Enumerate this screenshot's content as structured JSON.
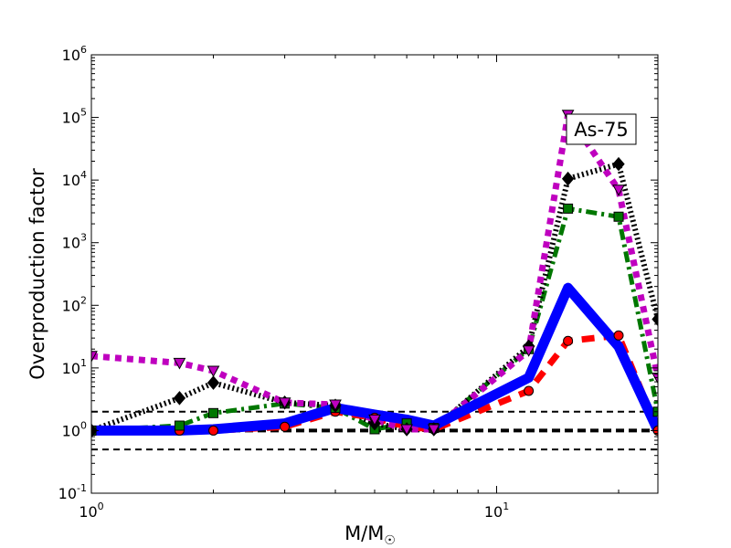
{
  "chart_data": {
    "type": "line",
    "annotation": "As-75",
    "xlabel_main": "M/M",
    "xlabel_sub": "☉",
    "ylabel": "Overproduction factor",
    "x_scale": "log",
    "y_scale": "log",
    "xlim": [
      1,
      25
    ],
    "ylim": [
      0.1,
      1000000
    ],
    "x_ticks": [
      {
        "value": 1,
        "base": "10",
        "exp": "0"
      },
      {
        "value": 10,
        "base": "10",
        "exp": "1"
      }
    ],
    "y_ticks": [
      {
        "value": 0.1,
        "base": "10",
        "exp": "-1"
      },
      {
        "value": 1,
        "base": "10",
        "exp": "0"
      },
      {
        "value": 10,
        "base": "10",
        "exp": "1"
      },
      {
        "value": 100,
        "base": "10",
        "exp": "2"
      },
      {
        "value": 1000,
        "base": "10",
        "exp": "3"
      },
      {
        "value": 10000,
        "base": "10",
        "exp": "4"
      },
      {
        "value": 100000,
        "base": "10",
        "exp": "5"
      },
      {
        "value": 1000000,
        "base": "10",
        "exp": "6"
      }
    ],
    "reference_lines": [
      {
        "y": 2,
        "style": "thin-dashed"
      },
      {
        "y": 1,
        "style": "thick-dashed"
      },
      {
        "y": 0.5,
        "style": "thin-dashed"
      }
    ],
    "grid": false,
    "series": [
      {
        "color": "#ff0000",
        "marker": "circle",
        "line": "dashed",
        "width": 7,
        "x": [
          1,
          1.65,
          2,
          3,
          4,
          5,
          6,
          7,
          12,
          15,
          20,
          25
        ],
        "y": [
          1,
          1,
          1,
          1.15,
          2.0,
          1.6,
          1.15,
          1.05,
          4.3,
          27,
          33,
          1
        ]
      },
      {
        "color": "#0000ff",
        "marker": "none",
        "line": "solid",
        "width": 11,
        "x": [
          1,
          1.65,
          2,
          3,
          4,
          5,
          6,
          7,
          12,
          15,
          20,
          25
        ],
        "y": [
          1,
          1,
          1.05,
          1.3,
          2.3,
          1.8,
          1.5,
          1.2,
          7,
          190,
          22,
          1
        ]
      },
      {
        "color": "#007700",
        "marker": "square",
        "line": "dashdot",
        "width": 5,
        "x": [
          1,
          1.65,
          2,
          3,
          4,
          5,
          6,
          7,
          12,
          15,
          20,
          25
        ],
        "y": [
          1,
          1.2,
          1.9,
          2.7,
          2.3,
          1.05,
          1.3,
          1.1,
          20,
          3500,
          2600,
          2
        ]
      },
      {
        "color": "#000000",
        "marker": "diamond",
        "line": "dotted",
        "width": 6,
        "x": [
          1,
          1.65,
          2,
          3,
          4,
          5,
          6,
          7,
          12,
          15,
          20,
          25
        ],
        "y": [
          1,
          3.3,
          5.8,
          2.8,
          2.5,
          1.3,
          1.05,
          1.05,
          22,
          10500,
          18000,
          60
        ]
      },
      {
        "color": "#bf00bf",
        "marker": "triangle-down",
        "line": "dotted",
        "width": 7,
        "x": [
          1,
          1.65,
          2,
          3,
          4,
          5,
          6,
          7,
          12,
          15,
          20,
          25
        ],
        "y": [
          15.5,
          12,
          9,
          2.8,
          2.6,
          1.5,
          1.05,
          1.05,
          19,
          110000,
          7000,
          7
        ]
      }
    ]
  }
}
